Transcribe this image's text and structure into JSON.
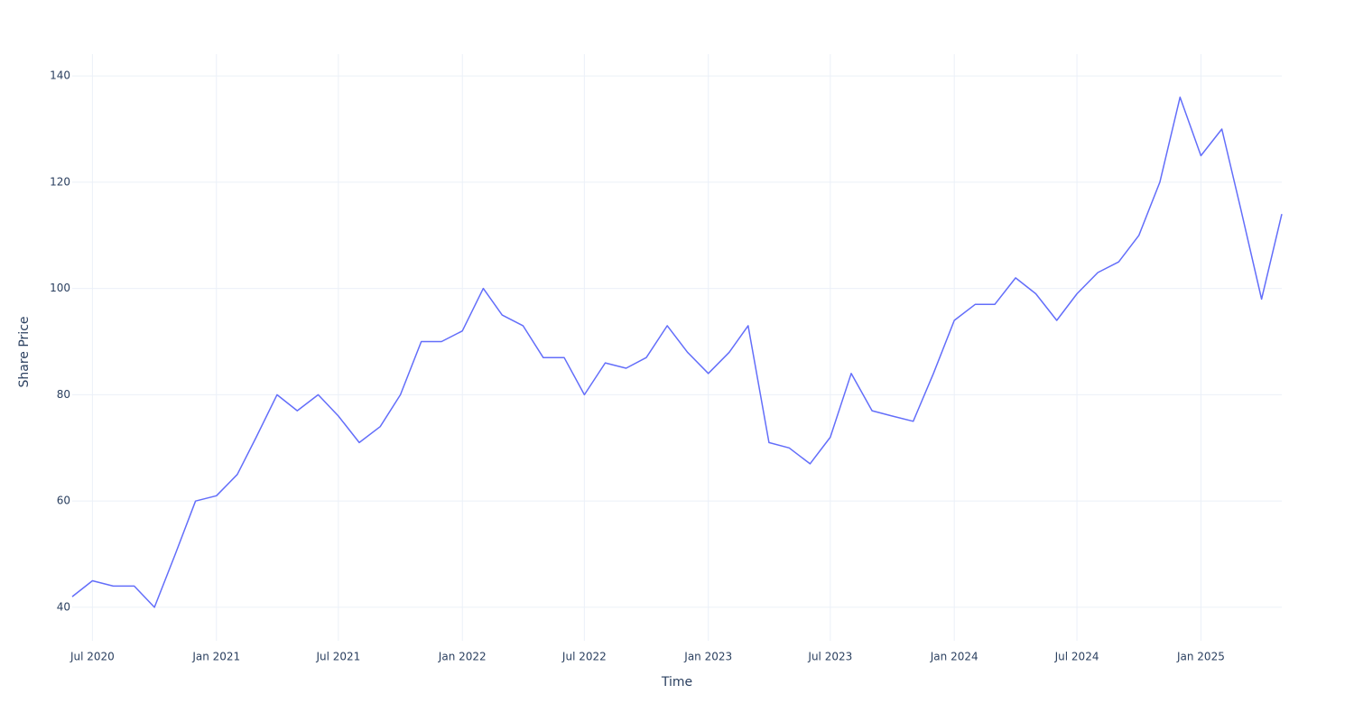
{
  "chart_data": {
    "type": "line",
    "x_label": "Time",
    "y_label": "Share Price",
    "x": [
      "2020-06",
      "2020-07",
      "2020-08",
      "2020-09",
      "2020-10",
      "2020-11",
      "2020-12",
      "2021-01",
      "2021-02",
      "2021-03",
      "2021-04",
      "2021-05",
      "2021-06",
      "2021-07",
      "2021-08",
      "2021-09",
      "2021-10",
      "2021-11",
      "2021-12",
      "2022-01",
      "2022-02",
      "2022-03",
      "2022-04",
      "2022-05",
      "2022-06",
      "2022-07",
      "2022-08",
      "2022-09",
      "2022-10",
      "2022-11",
      "2022-12",
      "2023-01",
      "2023-02",
      "2023-03",
      "2023-04",
      "2023-05",
      "2023-06",
      "2023-07",
      "2023-08",
      "2023-09",
      "2023-10",
      "2023-11",
      "2023-12",
      "2024-01",
      "2024-02",
      "2024-03",
      "2024-04",
      "2024-05",
      "2024-06",
      "2024-07",
      "2024-08",
      "2024-09",
      "2024-10",
      "2024-11",
      "2024-12",
      "2025-01",
      "2025-02",
      "2025-03",
      "2025-04",
      "2025-05"
    ],
    "series": [
      {
        "name": "Share Price",
        "color": "#636efa",
        "values": [
          42,
          45,
          44,
          44,
          40,
          50,
          60,
          61,
          65,
          72,
          80,
          77,
          80,
          76,
          71,
          74,
          80,
          90,
          90,
          92,
          100,
          95,
          93,
          87,
          87,
          80,
          86,
          85,
          87,
          93,
          88,
          84,
          88,
          93,
          71,
          70,
          67,
          72,
          84,
          77,
          76,
          75,
          84,
          94,
          97,
          97,
          102,
          99,
          94,
          99,
          103,
          105,
          110,
          120,
          136,
          125,
          130,
          115,
          98,
          114
        ]
      }
    ],
    "xlim": [
      "2020-06",
      "2025-05"
    ],
    "xticks": [
      {
        "value": "2020-07",
        "label": "Jul 2020"
      },
      {
        "value": "2021-01",
        "label": "Jan 2021"
      },
      {
        "value": "2021-07",
        "label": "Jul 2021"
      },
      {
        "value": "2022-01",
        "label": "Jan 2022"
      },
      {
        "value": "2022-07",
        "label": "Jul 2022"
      },
      {
        "value": "2023-01",
        "label": "Jan 2023"
      },
      {
        "value": "2023-07",
        "label": "Jul 2023"
      },
      {
        "value": "2024-01",
        "label": "Jan 2024"
      },
      {
        "value": "2024-07",
        "label": "Jul 2024"
      },
      {
        "value": "2025-01",
        "label": "Jan 2025"
      }
    ],
    "ylim": [
      33.7,
      144.1
    ],
    "yticks": [
      40,
      60,
      80,
      100,
      120,
      140
    ],
    "grid": true
  }
}
